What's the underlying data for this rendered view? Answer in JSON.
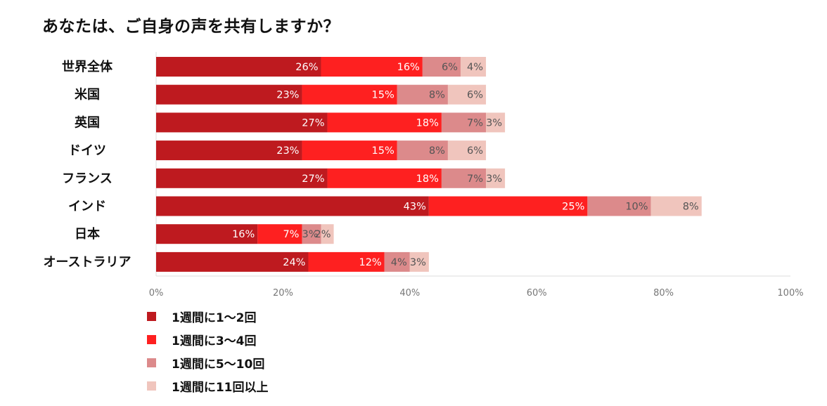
{
  "title": "あなたは、ご自身の声を共有しますか？",
  "colors": {
    "series": [
      "#be1a1f",
      "#fe2020",
      "#dc8a8b",
      "#f0c5bd"
    ],
    "label_on_dark": "#ffffff",
    "label_on_light": "#555555",
    "axis": "#dddddd"
  },
  "chart_data": {
    "type": "bar",
    "orientation": "horizontal",
    "stacked": true,
    "title": "あなたは、ご自身の声を共有しますか？",
    "categories": [
      "世界全体",
      "米国",
      "英国",
      "ドイツ",
      "フランス",
      "インド",
      "日本",
      "オーストラリア"
    ],
    "series": [
      {
        "name": "1週間に1〜2回",
        "values": [
          26,
          23,
          27,
          23,
          27,
          43,
          16,
          24
        ],
        "labels": [
          "26%",
          "23%",
          "27%",
          "23%",
          "27%",
          "43%",
          "16%",
          "24%"
        ]
      },
      {
        "name": "1週間に3〜4回",
        "values": [
          16,
          15,
          18,
          15,
          18,
          25,
          7,
          12
        ],
        "labels": [
          "16%",
          "15%",
          "18%",
          "15%",
          "18%",
          "25%",
          "7%",
          "12%"
        ]
      },
      {
        "name": "1週間に5〜10回",
        "values": [
          6,
          8,
          7,
          8,
          7,
          10,
          3,
          4
        ],
        "labels": [
          "6%",
          "8%",
          "7%",
          "8%",
          "7%",
          "10%",
          "3%",
          "4%"
        ]
      },
      {
        "name": "1週間に11回以上",
        "values": [
          4,
          6,
          3,
          6,
          3,
          8,
          2,
          3
        ],
        "labels": [
          "4%",
          "6%",
          "3%",
          "6%",
          "3%",
          "8%",
          "2%",
          "3%"
        ]
      }
    ],
    "xlim": [
      0,
      100
    ],
    "xticks": [
      0,
      20,
      40,
      60,
      80,
      100
    ],
    "xtick_labels": [
      "0%",
      "20%",
      "40%",
      "60%",
      "80%",
      "100%"
    ],
    "xlabel": "",
    "ylabel": "",
    "legend_position": "bottom-left",
    "grid": false
  }
}
